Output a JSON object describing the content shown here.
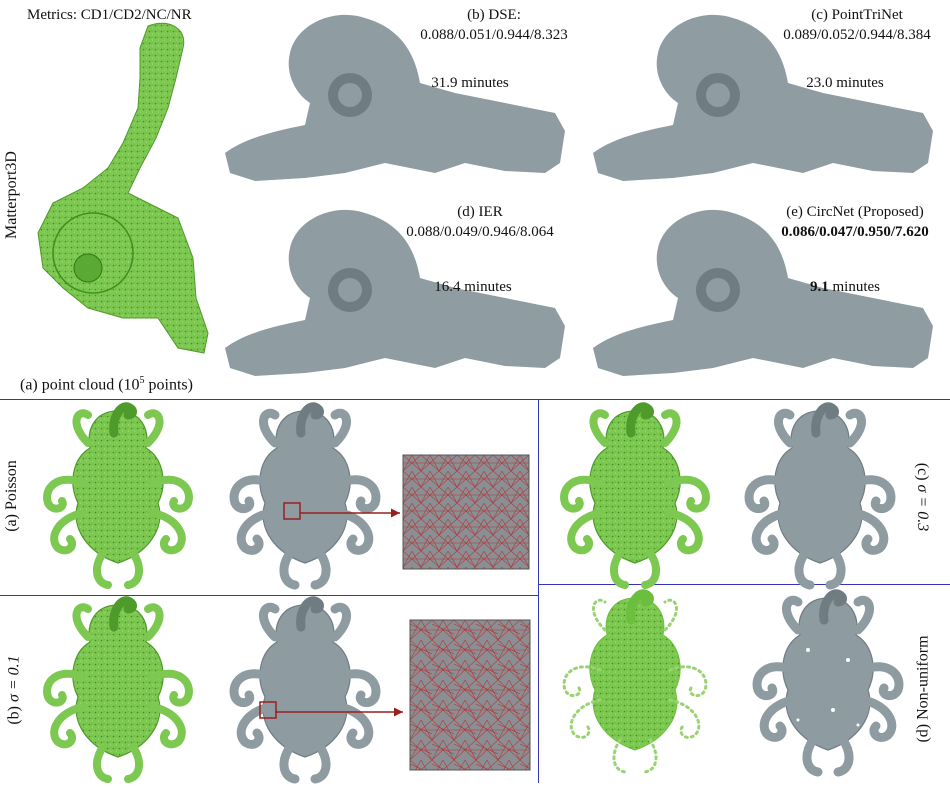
{
  "top": {
    "metrics_label": "Metrics: CD1/CD2/NC/NR",
    "dataset_label": "Matterport3D",
    "caption_a_prefix": "(a) point cloud (10",
    "caption_a_exp": "5",
    "caption_a_suffix": " points)",
    "methods": [
      {
        "title": "(b) DSE:",
        "metrics": "0.088/0.051/0.944/8.323",
        "time": "31.9 minutes",
        "time_value": "",
        "time_unit": ""
      },
      {
        "title": "(c) PointTriNet",
        "metrics": "0.089/0.052/0.944/8.384",
        "time": "23.0 minutes",
        "time_value": "",
        "time_unit": ""
      },
      {
        "title": "(d) IER",
        "metrics": "0.088/0.049/0.946/8.064",
        "time": "16.4 minutes",
        "time_value": "",
        "time_unit": ""
      },
      {
        "title": "(e) CircNet (Proposed)",
        "metrics": "0.086/0.047/0.950/7.620",
        "time": "",
        "time_value": "9.1",
        "time_unit": " minutes"
      }
    ]
  },
  "bottom": {
    "labels": {
      "poisson": "(a) Poisson",
      "sigma01_prefix": "(b) ",
      "sigma01_expr": "σ = 0.1",
      "sigma03_prefix": "(c) ",
      "sigma03_expr": "σ = 0.3",
      "nonuniform": "(d) Non-uniform"
    }
  },
  "colors": {
    "point_cloud_green": "#6cbf3e",
    "mesh_gray": "#8e9ca2",
    "divider_blue": "#3535b8",
    "arrow_red": "#9a1f1f",
    "wire_red": "#b0383a"
  }
}
